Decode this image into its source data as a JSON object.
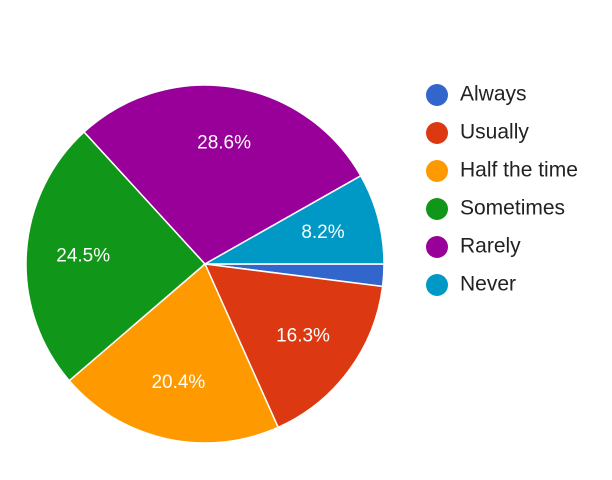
{
  "chart_data": {
    "type": "pie",
    "title": "",
    "legend_position": "right",
    "start_angle_deg": 0,
    "direction": "clockwise",
    "slices": [
      {
        "label": "Always",
        "value": 2.0,
        "display": "",
        "color": "#3366cc"
      },
      {
        "label": "Usually",
        "value": 16.3,
        "display": "16.3%",
        "color": "#dc3912"
      },
      {
        "label": "Half the time",
        "value": 20.4,
        "display": "20.4%",
        "color": "#ff9900"
      },
      {
        "label": "Sometimes",
        "value": 24.5,
        "display": "24.5%",
        "color": "#109618"
      },
      {
        "label": "Rarely",
        "value": 28.6,
        "display": "28.6%",
        "color": "#990099"
      },
      {
        "label": "Never",
        "value": 8.2,
        "display": "8.2%",
        "color": "#0099c6"
      }
    ]
  }
}
